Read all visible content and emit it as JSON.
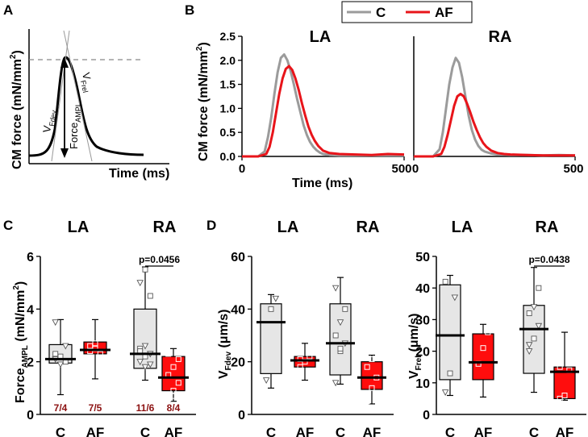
{
  "figure": {
    "panel_labels": [
      "A",
      "B",
      "C",
      "D"
    ],
    "colors": {
      "control": "#9b9b9b",
      "af": "#e8141a",
      "box_c": "#e6e6e6",
      "box_af": "#ff0d0d",
      "count": "#8b1010",
      "axis": "#000000",
      "dash": "#888888"
    }
  },
  "panelA": {
    "ylabel": "CM force (mN/mm",
    "ylabel_sup": "2",
    "ylabel_close": ")",
    "xlabel": "Time (ms)",
    "vfdev": {
      "main": "V",
      "sub": "Fdev"
    },
    "vfrel": {
      "main": "V",
      "sub": "Frel"
    },
    "force": {
      "main": "Force",
      "sub": "AMPL"
    }
  },
  "panelB": {
    "legend": {
      "c": "C",
      "af": "AF"
    },
    "ylabel": "CM force (mN/mm",
    "ylabel_sup": "2",
    "ylabel_close": ")",
    "xlabel": "Time (ms)"
  },
  "chart_data": [
    {
      "id": "B-LA",
      "type": "line",
      "title": "LA",
      "xlim": [
        0,
        500
      ],
      "ylim": [
        0,
        2.5
      ],
      "yticks": [
        0.0,
        0.5,
        1.0,
        1.5,
        2.0,
        2.5
      ],
      "ytick_labels": [
        "0.0",
        "0.5",
        "1.0",
        "1.5",
        "2.0",
        "2.5"
      ],
      "xtick_labels": [
        "0",
        "500"
      ],
      "series": [
        {
          "name": "C",
          "x": [
            0,
            50,
            70,
            80,
            90,
            100,
            110,
            120,
            130,
            140,
            150,
            160,
            170,
            180,
            190,
            200,
            210,
            220,
            230,
            240,
            250,
            270,
            300,
            350,
            400,
            450,
            500
          ],
          "y": [
            0,
            0,
            0.1,
            0.4,
            0.8,
            1.3,
            1.75,
            2.05,
            2.12,
            2.0,
            1.78,
            1.5,
            1.2,
            0.92,
            0.65,
            0.45,
            0.3,
            0.2,
            0.13,
            0.08,
            0.05,
            0.03,
            0.02,
            0.02,
            0.02,
            0.02,
            0.02
          ]
        },
        {
          "name": "AF",
          "x": [
            0,
            50,
            75,
            85,
            95,
            105,
            115,
            125,
            135,
            145,
            155,
            165,
            175,
            185,
            195,
            205,
            215,
            225,
            235,
            250,
            270,
            300,
            350,
            400,
            450,
            500
          ],
          "y": [
            0,
            0,
            0.05,
            0.2,
            0.5,
            0.9,
            1.3,
            1.62,
            1.82,
            1.88,
            1.8,
            1.62,
            1.38,
            1.1,
            0.85,
            0.62,
            0.45,
            0.32,
            0.22,
            0.12,
            0.07,
            0.05,
            0.04,
            0.03,
            0.05,
            0.04
          ]
        }
      ]
    },
    {
      "id": "B-RA",
      "type": "line",
      "title": "RA",
      "xlim": [
        0,
        500
      ],
      "ylim": [
        0,
        2.5
      ],
      "xtick_labels": [
        "0",
        "500"
      ],
      "series": [
        {
          "name": "C",
          "x": [
            0,
            60,
            80,
            90,
            100,
            110,
            120,
            130,
            140,
            150,
            160,
            170,
            180,
            190,
            200,
            210,
            220,
            240,
            260,
            300,
            350,
            400,
            450,
            500
          ],
          "y": [
            0,
            0,
            0.15,
            0.5,
            1.0,
            1.5,
            1.85,
            2.05,
            1.95,
            1.65,
            1.25,
            0.85,
            0.55,
            0.35,
            0.22,
            0.14,
            0.1,
            0.06,
            0.04,
            0.03,
            0.03,
            0.02,
            0.03,
            0.02
          ]
        },
        {
          "name": "AF",
          "x": [
            0,
            60,
            85,
            95,
            105,
            115,
            125,
            135,
            145,
            155,
            165,
            175,
            185,
            195,
            205,
            215,
            225,
            240,
            260,
            280,
            300,
            350,
            400,
            450,
            500
          ],
          "y": [
            0,
            0,
            0.05,
            0.2,
            0.45,
            0.75,
            1.05,
            1.25,
            1.3,
            1.25,
            1.1,
            0.92,
            0.72,
            0.55,
            0.4,
            0.28,
            0.2,
            0.12,
            0.07,
            0.05,
            0.04,
            0.03,
            0.02,
            0.02,
            0.02
          ]
        }
      ]
    },
    {
      "id": "C",
      "type": "box",
      "title": "",
      "group_titles": [
        "LA",
        "RA"
      ],
      "ylabel": "Force",
      "ylabel_sub": "AMPL",
      "ylabel_unit": " (mN/mm",
      "ylabel_sup": "2",
      "ylabel_close": ")",
      "ylim": [
        0,
        6
      ],
      "yticks": [
        0,
        2,
        4,
        6
      ],
      "ytick_labels": [
        "0",
        "2",
        "4",
        "6"
      ],
      "categories": [
        "C",
        "AF",
        "C",
        "AF"
      ],
      "boxes": [
        {
          "group": "LA",
          "cond": "C",
          "min": 0.75,
          "q1": 1.95,
          "median": 2.1,
          "q3": 2.65,
          "max": 3.6,
          "points": [
            2.1,
            2.2,
            2.6,
            2.3,
            1.9,
            2.0,
            3.5
          ],
          "count": "7/4"
        },
        {
          "group": "LA",
          "cond": "AF",
          "min": 1.35,
          "q1": 2.3,
          "median": 2.45,
          "q3": 2.75,
          "max": 3.6,
          "points": [
            2.4,
            2.5,
            2.3,
            2.6,
            2.7
          ],
          "count": "7/5"
        },
        {
          "group": "RA",
          "cond": "C",
          "min": 1.3,
          "q1": 1.75,
          "median": 2.3,
          "q3": 4.0,
          "max": 5.6,
          "points": [
            2.0,
            2.2,
            2.3,
            2.5,
            1.8,
            4.5,
            5.0,
            5.5,
            1.9,
            2.4,
            2.6
          ],
          "count": "11/6"
        },
        {
          "group": "RA",
          "cond": "AF",
          "min": 0.5,
          "q1": 0.9,
          "median": 1.4,
          "q3": 2.2,
          "max": 2.5,
          "points": [
            0.6,
            0.9,
            1.2,
            1.5,
            1.8,
            2.1,
            2.3,
            0.7
          ],
          "count": "8/4"
        }
      ],
      "annotation": "p=0.0456"
    },
    {
      "id": "D-Vfdev",
      "type": "box",
      "group_titles": [
        "LA",
        "RA"
      ],
      "ylabel": "V",
      "ylabel_sub": "Fdev",
      "ylabel_unit": " (μm/s)",
      "ylim": [
        0,
        60
      ],
      "yticks": [
        0,
        20,
        40,
        60
      ],
      "ytick_labels": [
        "0",
        "20",
        "40",
        "60"
      ],
      "categories": [
        "C",
        "AF",
        "C",
        "AF"
      ],
      "boxes": [
        {
          "group": "LA",
          "cond": "C",
          "min": 10,
          "q1": 15.5,
          "median": 35,
          "q3": 42,
          "max": 45.5,
          "points": [
            13,
            40,
            44
          ]
        },
        {
          "group": "LA",
          "cond": "AF",
          "min": 13,
          "q1": 18,
          "median": 20.5,
          "q3": 22,
          "max": 27,
          "points": [
            18,
            20,
            22,
            21
          ]
        },
        {
          "group": "RA",
          "cond": "C",
          "min": 11.5,
          "q1": 15,
          "median": 27,
          "q3": 42,
          "max": 52,
          "points": [
            12,
            24,
            27,
            30,
            35,
            40,
            48,
            25
          ]
        },
        {
          "group": "RA",
          "cond": "AF",
          "min": 4,
          "q1": 9.5,
          "median": 14,
          "q3": 20,
          "max": 22.5,
          "points": [
            5,
            10,
            14,
            18,
            21
          ]
        }
      ]
    },
    {
      "id": "D-Vfrel",
      "type": "box",
      "group_titles": [
        "LA",
        "RA"
      ],
      "ylabel": "V",
      "ylabel_sub": "Frel",
      "ylabel_unit": " (μm/s)",
      "ylim": [
        0,
        50
      ],
      "yticks": [
        0,
        10,
        20,
        30,
        40,
        50
      ],
      "ytick_labels": [
        "0",
        "10",
        "20",
        "30",
        "40",
        "50"
      ],
      "categories": [
        "C",
        "AF",
        "C",
        "AF"
      ],
      "boxes": [
        {
          "group": "LA",
          "cond": "C",
          "min": 6,
          "q1": 11,
          "median": 25,
          "q3": 41,
          "max": 44,
          "points": [
            7,
            13,
            37,
            42
          ]
        },
        {
          "group": "LA",
          "cond": "AF",
          "min": 5.5,
          "q1": 11,
          "median": 16.5,
          "q3": 25.5,
          "max": 28.5,
          "points": [
            16,
            21,
            26
          ]
        },
        {
          "group": "RA",
          "cond": "C",
          "min": 7,
          "q1": 13,
          "median": 27,
          "q3": 34.5,
          "max": 46.5,
          "points": [
            20,
            24,
            28,
            32,
            34,
            40,
            22
          ]
        },
        {
          "group": "RA",
          "cond": "AF",
          "min": 4.5,
          "q1": 5,
          "median": 13.5,
          "q3": 15,
          "max": 26,
          "points": [
            5,
            6,
            14,
            15
          ]
        }
      ],
      "annotation": "p=0.0438"
    }
  ]
}
